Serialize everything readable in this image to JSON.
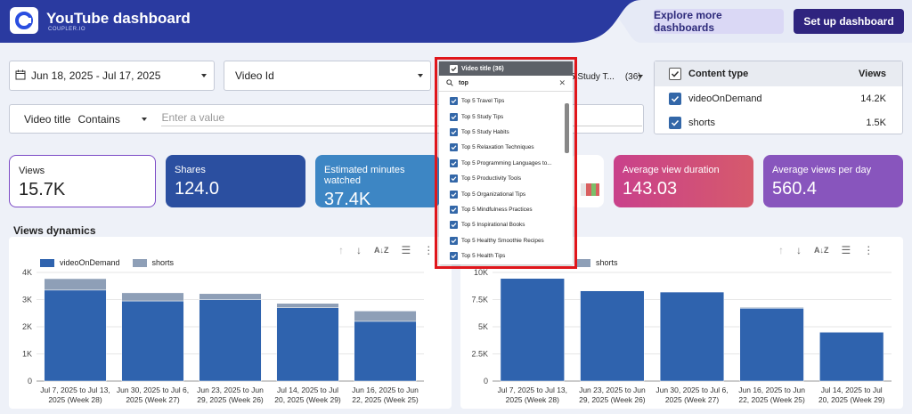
{
  "header": {
    "title": "YouTube dashboard",
    "subtitle": "COUPLER.IO",
    "explore_label": "Explore more dashboards",
    "setup_label": "Set up dashboard",
    "wave_color": "#2a3aa0"
  },
  "filters": {
    "date_range": "Jun 18, 2025 - Jul 17, 2025",
    "video_id_label": "Video Id",
    "video_title_label": "Video title",
    "condition": "Contains",
    "value_placeholder": "Enter a value",
    "study_label": "5 Study T...",
    "study_count": "(36)"
  },
  "content_type": {
    "header_label": "Content type",
    "header_value": "Views",
    "rows": [
      {
        "label": "videoOnDemand",
        "value": "14.2K"
      },
      {
        "label": "shorts",
        "value": "1.5K"
      }
    ]
  },
  "kpis": {
    "views": {
      "label": "Views",
      "value": "15.7K"
    },
    "shares": {
      "label": "Shares",
      "value": "124.0"
    },
    "minutes": {
      "label": "Estimated minutes watched",
      "value": "37.4K"
    },
    "avg_duration": {
      "label": "Average view duration",
      "value": "143.03"
    },
    "avg_per_day": {
      "label": "Average views per day",
      "value": "560.4"
    }
  },
  "views_dynamics": {
    "title": "Views dynamics"
  },
  "dropdown": {
    "header": "Video title (36)",
    "search_value": "top",
    "items": [
      "Top 5 Travel Tips",
      "Top 5 Study Tips",
      "Top 5 Study Habits",
      "Top 5 Relaxation Techniques",
      "Top 5 Programming Languages to...",
      "Top 5 Productivity Tools",
      "Top 5 Organizational Tips",
      "Top 5 Mindfulness Practices",
      "Top 5 Inspirational Books",
      "Top 5 Healthy Smoothie Recipes",
      "Top 5 Health Tips"
    ]
  },
  "colors": {
    "vod": "#2f63ae",
    "shorts": "#8e9fb7"
  },
  "chart_data": [
    {
      "type": "bar",
      "stacked": true,
      "categories": [
        [
          "Jul 7, 2025 to Jul 13,",
          "2025 (Week 28)"
        ],
        [
          "Jun 30, 2025 to Jul 6,",
          "2025 (Week 27)"
        ],
        [
          "Jun 23, 2025 to Jun",
          "29, 2025 (Week 26)"
        ],
        [
          "Jul 14, 2025 to Jul",
          "20, 2025 (Week 29)"
        ],
        [
          "Jun 16, 2025 to Jun",
          "22, 2025 (Week 25)"
        ]
      ],
      "series": [
        {
          "name": "videoOnDemand",
          "values": [
            3350,
            2950,
            3000,
            2700,
            2200
          ]
        },
        {
          "name": "shorts",
          "values": [
            420,
            300,
            220,
            160,
            380
          ]
        }
      ],
      "yticks": [
        "0",
        "1K",
        "2K",
        "3K",
        "4K"
      ],
      "ylim": [
        0,
        4000
      ]
    },
    {
      "type": "bar",
      "stacked": true,
      "categories": [
        [
          "Jul 7, 2025 to Jul 13,",
          "2025 (Week 28)"
        ],
        [
          "Jun 23, 2025 to Jun",
          "29, 2025 (Week 26)"
        ],
        [
          "Jun 30, 2025 to Jul 6,",
          "2025 (Week 27)"
        ],
        [
          "Jun 16, 2025 to Jun",
          "22, 2025 (Week 25)"
        ],
        [
          "Jul 14, 2025 to Jul",
          "20, 2025 (Week 29)"
        ]
      ],
      "series": [
        {
          "name": "videoOnDemand",
          "values": [
            9450,
            8300,
            8200,
            6700,
            4500
          ]
        },
        {
          "name": "shorts",
          "values": [
            40,
            30,
            30,
            80,
            20
          ]
        }
      ],
      "yticks": [
        "0",
        "2.5K",
        "5K",
        "7.5K",
        "10K"
      ],
      "ylim": [
        0,
        10000
      ]
    }
  ]
}
